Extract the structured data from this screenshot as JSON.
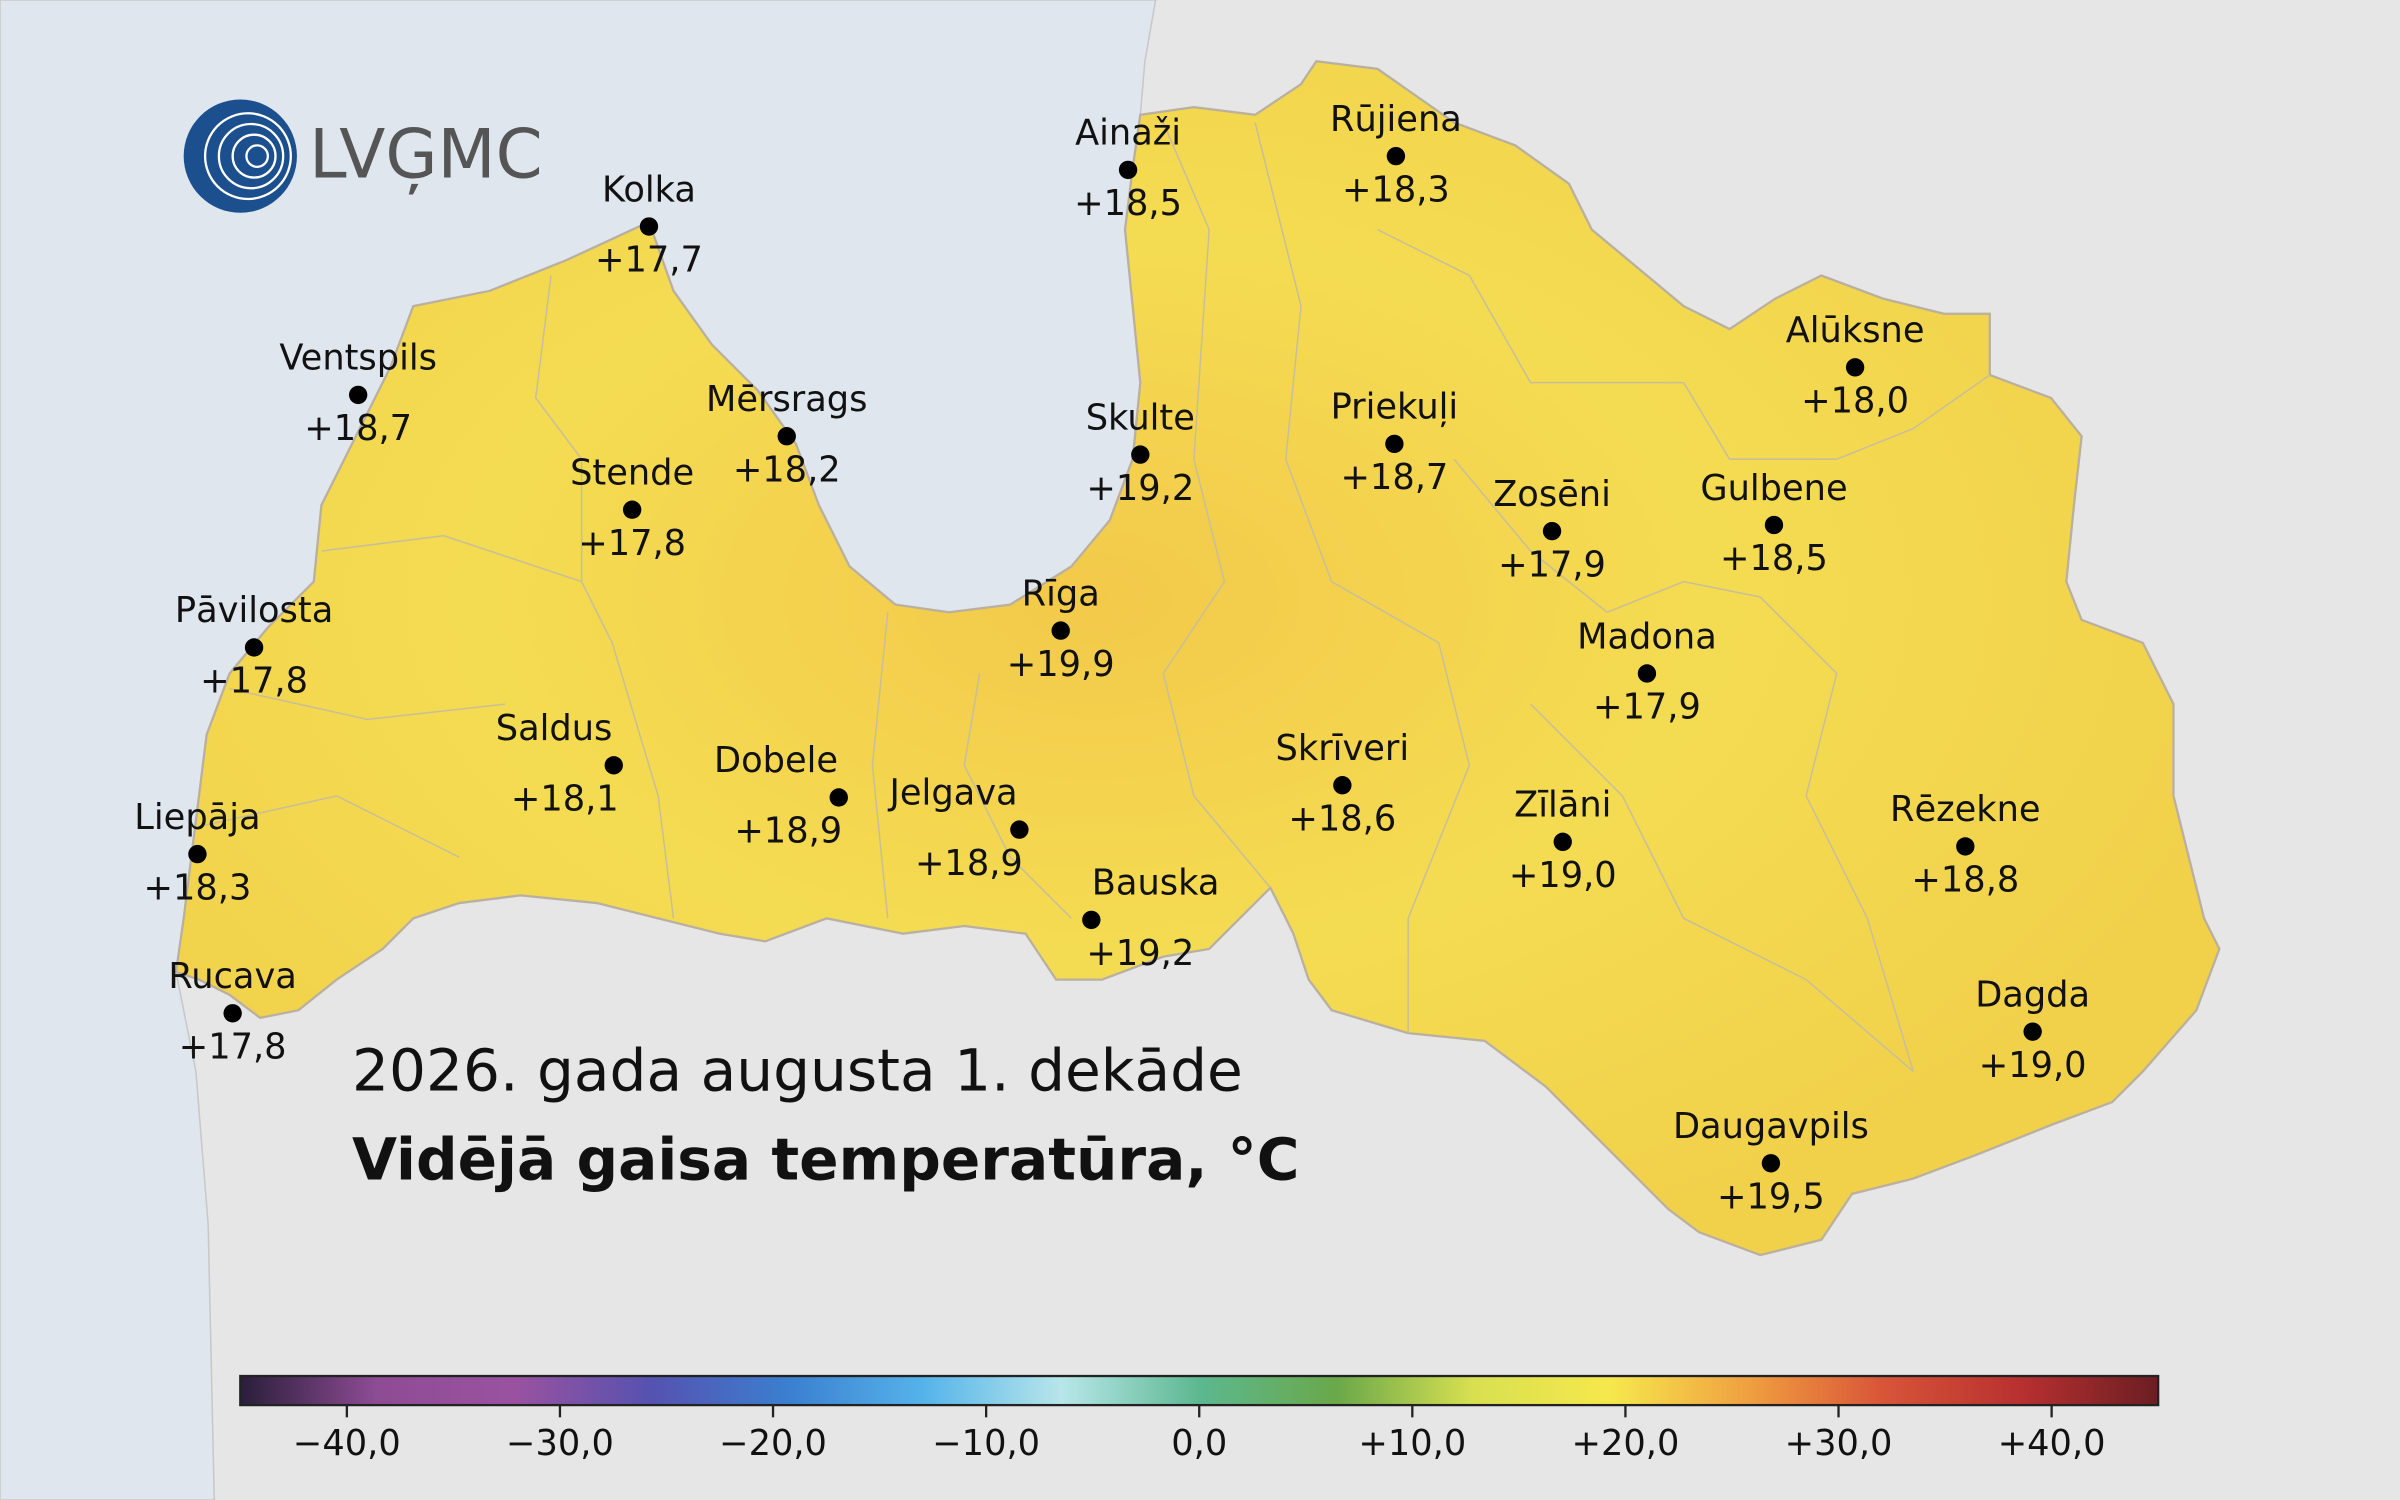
{
  "logo": "LVĢMC",
  "title": "2026. gada augusta 1. dekāde",
  "subtitle": "Vidējā gaisa temperatūra, °C",
  "stations": [
    {
      "name": "Ainaži",
      "label": "+18,5"
    },
    {
      "name": "Rūjiena",
      "label": "+18,3"
    },
    {
      "name": "Kolka",
      "label": "+17,7"
    },
    {
      "name": "Ventspils",
      "label": "+18,7"
    },
    {
      "name": "Mērsrags",
      "label": "+18,2"
    },
    {
      "name": "Skulte",
      "label": "+19,2"
    },
    {
      "name": "Priekuļi",
      "label": "+18,7"
    },
    {
      "name": "Alūksne",
      "label": "+18,0"
    },
    {
      "name": "Stende",
      "label": "+17,8"
    },
    {
      "name": "Zosēni",
      "label": "+17,9"
    },
    {
      "name": "Gulbene",
      "label": "+18,5"
    },
    {
      "name": "Pāvilosta",
      "label": "+17,8"
    },
    {
      "name": "Rīga",
      "label": "+19,9"
    },
    {
      "name": "Madona",
      "label": "+17,9"
    },
    {
      "name": "Saldus",
      "label": "+18,1"
    },
    {
      "name": "Dobele",
      "label": "+18,9"
    },
    {
      "name": "Jelgava",
      "label": "+18,9"
    },
    {
      "name": "Skrīveri",
      "label": "+18,6"
    },
    {
      "name": "Zīlāni",
      "label": "+19,0"
    },
    {
      "name": "Rēzekne",
      "label": "+18,8"
    },
    {
      "name": "Liepāja",
      "label": "+18,3"
    },
    {
      "name": "Bauska",
      "label": "+19,2"
    },
    {
      "name": "Rucava",
      "label": "+17,8"
    },
    {
      "name": "Dagda",
      "label": "+19,0"
    },
    {
      "name": "Daugavpils",
      "label": "+19,5"
    }
  ],
  "colorbar": {
    "lim": [
      -45,
      45
    ],
    "colors": [
      "#2a1e3a",
      "#8e4c94",
      "#9a52a0",
      "#5552b0",
      "#3b7fd0",
      "#56b4ea",
      "#b8e6ea",
      "#5cb890",
      "#6aa84a",
      "#d8e050",
      "#f6e84c",
      "#f0a040",
      "#d85438",
      "#b83030",
      "#6a1e22"
    ],
    "ticks": [
      {
        "value": -40,
        "label": "−40,0"
      },
      {
        "value": -30,
        "label": "−30,0"
      },
      {
        "value": -20,
        "label": "−20,0"
      },
      {
        "value": -10,
        "label": "−10,0"
      },
      {
        "value": 0,
        "label": "0,0"
      },
      {
        "value": 10,
        "label": "+10,0"
      },
      {
        "value": 20,
        "label": "+20,0"
      },
      {
        "value": 30,
        "label": "+30,0"
      },
      {
        "value": 40,
        "label": "+40,0"
      }
    ]
  }
}
